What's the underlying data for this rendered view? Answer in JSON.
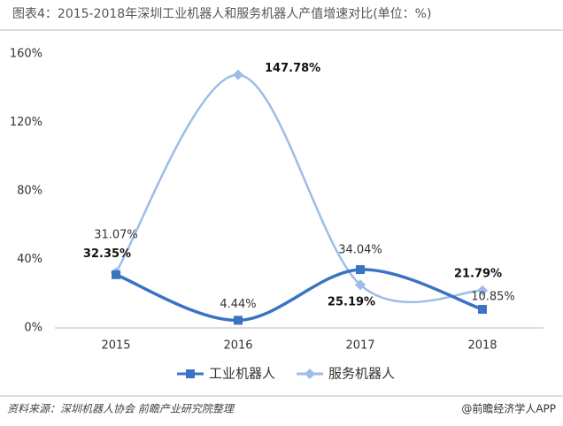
{
  "chart_data": {
    "type": "line",
    "title": "图表4：2015-2018年深圳工业机器人和服务机器人产值增速对比(单位：%)",
    "categories": [
      "2015",
      "2016",
      "2017",
      "2018"
    ],
    "series": [
      {
        "name": "工业机器人",
        "color": "#3b73c4",
        "values": [
          31.07,
          4.44,
          34.04,
          10.85
        ],
        "value_labels": [
          "31.07%",
          "4.44%",
          "34.04%",
          "10.85%"
        ]
      },
      {
        "name": "服务机器人",
        "color": "#9dbde6",
        "values": [
          32.35,
          147.78,
          25.19,
          21.79
        ],
        "value_labels": [
          "32.35%",
          "147.78%",
          "25.19%",
          "21.79%"
        ]
      }
    ],
    "ylim": [
      0,
      160
    ],
    "yticks": [
      {
        "value": 0,
        "label": "0%"
      },
      {
        "value": 40,
        "label": "40%"
      },
      {
        "value": 80,
        "label": "80%"
      },
      {
        "value": 120,
        "label": "120%"
      },
      {
        "value": 160,
        "label": "160%"
      }
    ],
    "grid": false,
    "legend": "bottom",
    "source": "资料来源：深圳机器人协会 前瞻产业研究院整理",
    "watermark": "@前瞻经济学人APP"
  }
}
